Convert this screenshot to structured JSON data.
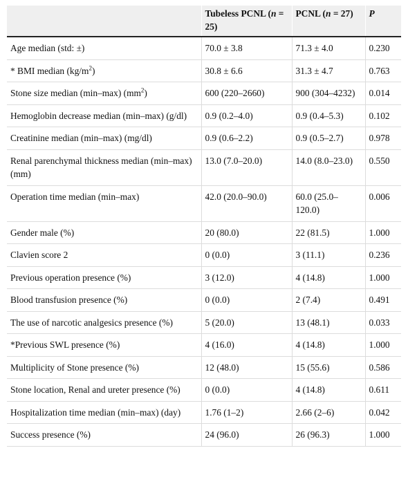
{
  "table": {
    "header": {
      "col1": "",
      "col2_prefix": "Tubeless PCNL (",
      "col2_italic": "n",
      "col2_suffix": " = 25)",
      "col3_prefix": "PCNL (",
      "col3_italic": "n",
      "col3_suffix": " = 27)",
      "col4": "P"
    },
    "rows": [
      {
        "label": "Age median (std: ±)",
        "sup": "",
        "label_after": "",
        "tubeless": "70.0 ± 3.8",
        "pcnl": "71.3 ± 4.0",
        "p": "0.230"
      },
      {
        "label": "* BMI median (kg/m",
        "sup": "2",
        "label_after": ")",
        "tubeless": "30.8 ± 6.6",
        "pcnl": "31.3 ± 4.7",
        "p": "0.763"
      },
      {
        "label": "Stone size median (min–max) (mm",
        "sup": "2",
        "label_after": ")",
        "tubeless": "600 (220–2660)",
        "pcnl": "900 (304–4232)",
        "p": "0.014"
      },
      {
        "label": "Hemoglobin decrease median (min–max) (g/dl)",
        "sup": "",
        "label_after": "",
        "tubeless": "0.9 (0.2–4.0)",
        "pcnl": "0.9 (0.4–5.3)",
        "p": "0.102"
      },
      {
        "label": "Creatinine median (min–max) (mg/dl)",
        "sup": "",
        "label_after": "",
        "tubeless": "0.9 (0.6–2.2)",
        "pcnl": "0.9 (0.5–2.7)",
        "p": "0.978"
      },
      {
        "label": "Renal parenchymal thickness median (min–max) (mm)",
        "sup": "",
        "label_after": "",
        "tubeless": "13.0 (7.0–20.0)",
        "pcnl": "14.0 (8.0–23.0)",
        "p": "0.550"
      },
      {
        "label": "Operation time median (min–max)",
        "sup": "",
        "label_after": "",
        "tubeless": "42.0 (20.0–90.0)",
        "pcnl": "60.0 (25.0–120.0)",
        "p": "0.006"
      },
      {
        "label": "Gender male (%)",
        "sup": "",
        "label_after": "",
        "tubeless": "20 (80.0)",
        "pcnl": "22 (81.5)",
        "p": "1.000"
      },
      {
        "label": "Clavien score 2",
        "sup": "",
        "label_after": "",
        "tubeless": "0 (0.0)",
        "pcnl": "3 (11.1)",
        "p": "0.236"
      },
      {
        "label": "Previous operation presence (%)",
        "sup": "",
        "label_after": "",
        "tubeless": "3 (12.0)",
        "pcnl": "4 (14.8)",
        "p": "1.000"
      },
      {
        "label": "Blood transfusion presence (%)",
        "sup": "",
        "label_after": "",
        "tubeless": "0 (0.0)",
        "pcnl": "2 (7.4)",
        "p": "0.491"
      },
      {
        "label": "The use of narcotic analgesics presence (%)",
        "sup": "",
        "label_after": "",
        "tubeless": "5 (20.0)",
        "pcnl": "13 (48.1)",
        "p": "0.033"
      },
      {
        "label": "*Previous SWL presence (%)",
        "sup": "",
        "label_after": "",
        "tubeless": "4 (16.0)",
        "pcnl": "4 (14.8)",
        "p": "1.000"
      },
      {
        "label": "Multiplicity of Stone presence (%)",
        "sup": "",
        "label_after": "",
        "tubeless": "12 (48.0)",
        "pcnl": "15 (55.6)",
        "p": "0.586"
      },
      {
        "label": "Stone location, Renal and ureter presence (%)",
        "sup": "",
        "label_after": "",
        "tubeless": "0 (0.0)",
        "pcnl": "4 (14.8)",
        "p": "0.611"
      },
      {
        "label": "Hospitalization time median (min–max) (day)",
        "sup": "",
        "label_after": "",
        "tubeless": "1.76 (1–2)",
        "pcnl": "2.66 (2–6)",
        "p": "0.042"
      },
      {
        "label": "Success presence (%)",
        "sup": "",
        "label_after": "",
        "tubeless": "24 (96.0)",
        "pcnl": "26 (96.3)",
        "p": "1.000"
      }
    ]
  }
}
